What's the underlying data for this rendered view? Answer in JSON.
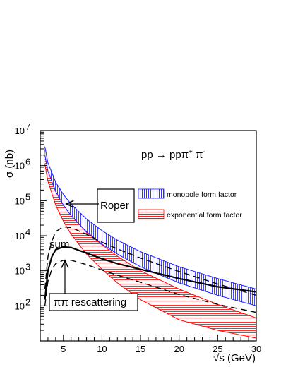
{
  "chart_data": {
    "type": "line",
    "title": "",
    "xlabel": "√s (GeV)",
    "ylabel": "σ (nb)",
    "xlim": [
      2,
      30
    ],
    "ylim": [
      10,
      10000000
    ],
    "yscale": "log",
    "x_ticks": [
      5,
      10,
      15,
      20,
      25,
      30
    ],
    "y_ticks": [
      {
        "value": 100,
        "base": "10",
        "exp": "2"
      },
      {
        "value": 1000,
        "base": "10",
        "exp": "3"
      },
      {
        "value": 10000,
        "base": "10",
        "exp": "4"
      },
      {
        "value": 100000,
        "base": "10",
        "exp": "5"
      },
      {
        "value": 1000000,
        "base": "10",
        "exp": "6"
      },
      {
        "value": 10000000,
        "base": "10",
        "exp": "7"
      }
    ],
    "reaction": {
      "main": "pp → ppπ",
      "sup1": "+",
      "mid": " π",
      "sup2": "-"
    },
    "legend": [
      {
        "label": "monopole form factor",
        "color": "#1a1aff",
        "hatch": "vertical"
      },
      {
        "label": "exponential form factor",
        "color": "#ff0000",
        "hatch": "horizontal"
      }
    ],
    "bands": [
      {
        "name": "monopole form factor",
        "color": "#1a1aff",
        "x": [
          2.6,
          3,
          4,
          5,
          6,
          8,
          10,
          12,
          15,
          20,
          25,
          30
        ],
        "upper": [
          3500000,
          1200000,
          340000,
          150000,
          80000,
          30000,
          14000,
          7500,
          3500,
          1300,
          600,
          300
        ],
        "lower": [
          2000000,
          700000,
          180000,
          75000,
          37000,
          13000,
          5800,
          3000,
          1300,
          450,
          200,
          100
        ]
      },
      {
        "name": "exponential form factor",
        "color": "#ff0000",
        "x": [
          2.6,
          3,
          4,
          5,
          6,
          8,
          10,
          12,
          15,
          20,
          25,
          30
        ],
        "upper": [
          2700000,
          900000,
          210000,
          80000,
          38000,
          12500,
          5500,
          2600,
          1000,
          300,
          110,
          45
        ],
        "lower": [
          1100000,
          360000,
          75000,
          26000,
          11000,
          3000,
          1100,
          450,
          150,
          40,
          20,
          12
        ]
      }
    ],
    "series": [
      {
        "name": "sum",
        "style": "solid",
        "x": [
          2.6,
          3,
          3.5,
          4,
          5,
          6,
          8,
          10,
          12,
          15,
          20,
          25,
          30
        ],
        "y": [
          150,
          1000,
          2500,
          4000,
          4800,
          4600,
          3200,
          2200,
          1600,
          1100,
          600,
          350,
          250
        ]
      },
      {
        "style": "dashed",
        "x": [
          2.6,
          3,
          3.5,
          4,
          5,
          6,
          8,
          10,
          12,
          15,
          20,
          25,
          30
        ],
        "y": [
          300,
          2500,
          7000,
          13000,
          18000,
          17000,
          11000,
          6500,
          4200,
          2300,
          950,
          420,
          200
        ]
      },
      {
        "style": "dashed",
        "x": [
          2.6,
          3,
          3.5,
          4,
          5,
          6,
          8,
          10,
          12,
          15,
          20,
          25,
          30
        ],
        "y": [
          100,
          500,
          1100,
          1600,
          2000,
          2000,
          1500,
          1050,
          750,
          470,
          210,
          110,
          65
        ]
      }
    ],
    "annotations": [
      {
        "text": "Roper",
        "boxed": true
      },
      {
        "text": "sum",
        "boxed": false
      },
      {
        "text": "ππ rescattering",
        "boxed": true
      }
    ]
  }
}
